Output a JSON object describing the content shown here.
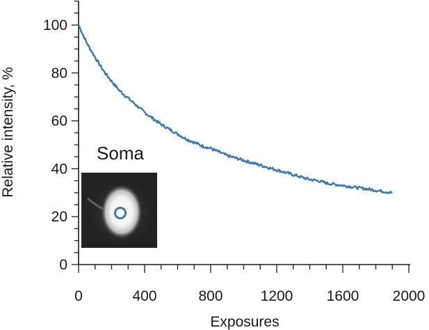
{
  "chart_data": {
    "type": "line",
    "title": "",
    "xlabel": "Exposures",
    "ylabel": "Relative intensity, %",
    "xlim": [
      0,
      2000
    ],
    "ylim": [
      0,
      110
    ],
    "x_ticks": [
      0,
      400,
      800,
      1200,
      1600,
      2000
    ],
    "y_ticks": [
      0,
      20,
      40,
      60,
      80,
      100
    ],
    "grid": false,
    "series": [
      {
        "color": "#3b78b0",
        "x": [
          0,
          50,
          100,
          150,
          200,
          250,
          300,
          350,
          400,
          450,
          500,
          550,
          600,
          650,
          700,
          750,
          800,
          850,
          900,
          950,
          1000,
          1050,
          1100,
          1150,
          1200,
          1250,
          1300,
          1350,
          1400,
          1450,
          1500,
          1550,
          1600,
          1650,
          1700,
          1750,
          1800,
          1850,
          1900
        ],
        "y": [
          100,
          92.5,
          86.5,
          81,
          76.5,
          72.5,
          69.5,
          66.5,
          63.5,
          61,
          58.5,
          56.5,
          54.5,
          52.5,
          51,
          49.5,
          48.5,
          47,
          45.5,
          44.5,
          43.5,
          42.5,
          41.5,
          40.5,
          39.5,
          38.5,
          37.5,
          36.5,
          35.5,
          35,
          34,
          33.5,
          33,
          32.5,
          32,
          31.5,
          31,
          30.5,
          30
        ]
      }
    ],
    "inset": {
      "label": "Soma",
      "marker_color": "#3b78b0"
    }
  }
}
